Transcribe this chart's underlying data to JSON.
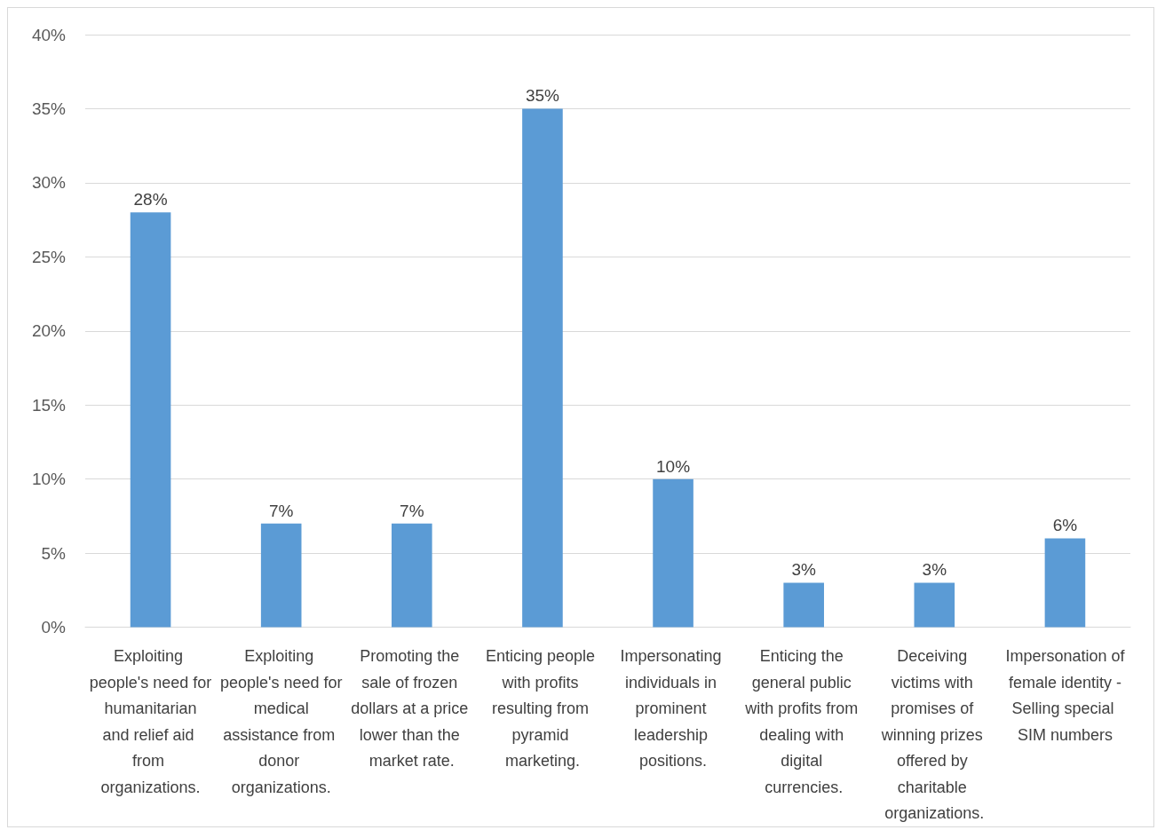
{
  "chart_data": {
    "type": "bar",
    "categories": [
      "Exploiting people's need for humanitarian and relief aid from organizations.",
      "Exploiting people's need for medical assistance from donor organizations.",
      "Promoting the sale of frozen dollars at a price lower than the market rate.",
      "Enticing people with profits resulting from pyramid marketing.",
      "Impersonating individuals in prominent leadership positions.",
      "Enticing the general public with profits from dealing with digital currencies.",
      "Deceiving victims with promises of winning prizes offered by charitable organizations.",
      "Impersonation of female identity - Selling special SIM numbers"
    ],
    "values": [
      28,
      7,
      7,
      35,
      10,
      3,
      3,
      6
    ],
    "value_labels": [
      "28%",
      "7%",
      "7%",
      "35%",
      "10%",
      "3%",
      "3%",
      "6%"
    ],
    "color": "#5b9bd5",
    "ylim": [
      0,
      40
    ],
    "yticks": [
      {
        "value": 0,
        "label": "0%"
      },
      {
        "value": 5,
        "label": "5%"
      },
      {
        "value": 10,
        "label": "10%"
      },
      {
        "value": 15,
        "label": "15%"
      },
      {
        "value": 20,
        "label": "20%"
      },
      {
        "value": 25,
        "label": "25%"
      },
      {
        "value": 30,
        "label": "30%"
      },
      {
        "value": 35,
        "label": "35%"
      },
      {
        "value": 40,
        "label": "40%"
      }
    ],
    "grid": "y"
  }
}
